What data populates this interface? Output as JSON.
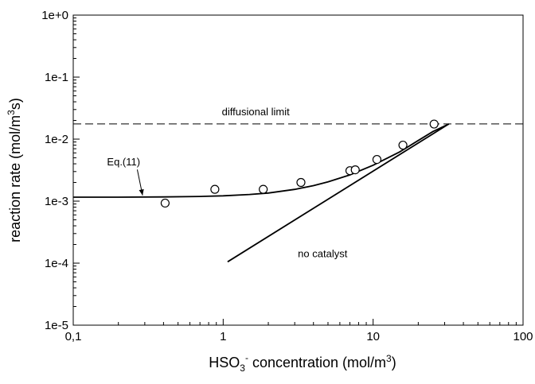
{
  "chart_data": {
    "type": "scatter",
    "title": "",
    "xlabel": {
      "prefix": "HSO",
      "subscript": "3",
      "superscript": "-",
      "suffix": " concentration (mol/m",
      "unit_superscript": "3",
      "close": ")"
    },
    "ylabel": {
      "prefix": "reaction rate (mol/m",
      "superscript": "3",
      "suffix": "s)"
    },
    "x_scale": "log",
    "y_scale": "log",
    "xlim": [
      0.1,
      100
    ],
    "ylim": [
      1e-05,
      1
    ],
    "x_ticks": [
      {
        "value": 0.1,
        "label": "0,1"
      },
      {
        "value": 1,
        "label": "1"
      },
      {
        "value": 10,
        "label": "10"
      },
      {
        "value": 100,
        "label": "100"
      }
    ],
    "y_ticks": [
      {
        "value": 1,
        "label": "1e+0"
      },
      {
        "value": 0.1,
        "label": "1e-1"
      },
      {
        "value": 0.01,
        "label": "1e-2"
      },
      {
        "value": 0.001,
        "label": "1e-3"
      },
      {
        "value": 0.0001,
        "label": "1e-4"
      },
      {
        "value": 1e-05,
        "label": "1e-5"
      }
    ],
    "grid": false,
    "series": [
      {
        "kind": "scatter",
        "marker": "open-circle",
        "x": [
          0.41,
          0.88,
          1.85,
          3.3,
          7.0,
          7.6,
          10.6,
          15.8,
          25.5
        ],
        "y": [
          0.00093,
          0.00155,
          0.00155,
          0.002,
          0.0031,
          0.0032,
          0.0047,
          0.008,
          0.0175
        ]
      },
      {
        "kind": "line",
        "style": "solid",
        "x": [
          0.1,
          0.2,
          0.4,
          0.7,
          1.0,
          1.5,
          2.0,
          3.0,
          4.0,
          5.0,
          7.0,
          10.0,
          15.0,
          20.0,
          25.0,
          32.0
        ],
        "y": [
          0.00116,
          0.00116,
          0.00117,
          0.00119,
          0.00122,
          0.00128,
          0.00135,
          0.00155,
          0.00178,
          0.00205,
          0.00265,
          0.0038,
          0.0062,
          0.0095,
          0.0132,
          0.0176
        ]
      },
      {
        "kind": "line",
        "style": "solid",
        "x": [
          1.07,
          32.0
        ],
        "y": [
          0.000105,
          0.0176
        ]
      },
      {
        "kind": "line",
        "style": "dashed",
        "x": [
          0.1,
          100
        ],
        "y": [
          0.0176,
          0.0176
        ]
      }
    ],
    "annotations": [
      {
        "text": "diffusional limit",
        "x": 0.98,
        "y": 0.0242
      },
      {
        "text": "Eq.(11)",
        "x": 0.168,
        "y": 0.00375,
        "arrow_to": [
          0.29,
          0.00124
        ]
      },
      {
        "text": "no catalyst",
        "x": 3.15,
        "y": 0.000125
      }
    ],
    "colors": {
      "ink": "#000000",
      "background": "#ffffff"
    }
  }
}
